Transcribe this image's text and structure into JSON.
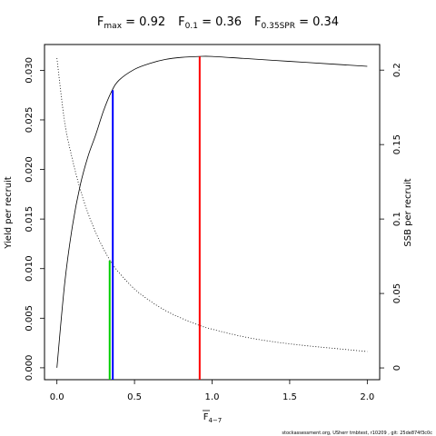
{
  "title": {
    "fmax_main": "F",
    "fmax_sub": "max",
    "fmax_value": " = 0.92",
    "f01_main": "F",
    "f01_sub": "0.1",
    "f01_value": " = 0.36",
    "fspr_main": "F",
    "fspr_sub": "0.35SPR",
    "fspr_value": " = 0.34"
  },
  "footer": "stockassessment.org,  USherr  tmbtest,  r10209 ,  git: 25de874f3c0c",
  "chart_data": {
    "type": "line",
    "title": "Fmax = 0.92   F0.1 = 0.36   F0.35SPR = 0.34",
    "xlabel_main": "F",
    "xlabel_sub": "4−7",
    "ylabel_left": "Yield per recruit",
    "ylabel_right": "SSB per recruit",
    "xlim": [
      -0.08,
      2.08
    ],
    "ylim_left": [
      -0.0012,
      0.0326
    ],
    "ylim_right": [
      -0.0079,
      0.2172
    ],
    "x_ticks": [
      0,
      0.5,
      1,
      1.5,
      2
    ],
    "x_tick_labels": [
      "0.0",
      "0.5",
      "1.0",
      "1.5",
      "2.0"
    ],
    "y_left_ticks": [
      0,
      0.005,
      0.01,
      0.015,
      0.02,
      0.025,
      0.03
    ],
    "y_left_tick_labels": [
      "0.000",
      "0.005",
      "0.010",
      "0.015",
      "0.020",
      "0.025",
      "0.030"
    ],
    "y_right_ticks": [
      0,
      0.05,
      0.1,
      0.15,
      0.2
    ],
    "y_right_tick_labels": [
      "0",
      "0.05",
      "0.1",
      "0.15",
      "0.2"
    ],
    "grid": false,
    "series": [
      {
        "axis": "left",
        "style": "solid",
        "color": "#000000",
        "x": [
          0,
          0.05,
          0.1,
          0.15,
          0.2,
          0.25,
          0.3,
          0.35,
          0.4,
          0.5,
          0.6,
          0.7,
          0.8,
          0.92,
          1.0,
          1.2,
          1.4,
          1.6,
          1.8,
          2.0
        ],
        "y": [
          0,
          0.0085,
          0.0143,
          0.0184,
          0.0213,
          0.0235,
          0.0259,
          0.0278,
          0.029,
          0.0301,
          0.0307,
          0.0311,
          0.0313,
          0.0314,
          0.0314,
          0.0312,
          0.031,
          0.0308,
          0.0306,
          0.0304
        ]
      },
      {
        "axis": "right",
        "style": "dotted",
        "color": "#000000",
        "x": [
          0,
          0.05,
          0.1,
          0.15,
          0.2,
          0.25,
          0.3,
          0.35,
          0.4,
          0.5,
          0.6,
          0.7,
          0.8,
          0.92,
          1.0,
          1.2,
          1.4,
          1.6,
          1.8,
          2.0
        ],
        "y": [
          0.208,
          0.165,
          0.14,
          0.12,
          0.104,
          0.091,
          0.08,
          0.071,
          0.064,
          0.053,
          0.045,
          0.0385,
          0.0335,
          0.0285,
          0.026,
          0.021,
          0.0175,
          0.015,
          0.013,
          0.011
        ]
      }
    ],
    "reference_lines": [
      {
        "name": "Fmax",
        "x": 0.92,
        "y": 0.0314,
        "color": "#ff0000"
      },
      {
        "name": "F0.1",
        "x": 0.36,
        "y": 0.028,
        "color": "#0000ff"
      },
      {
        "name": "F0.35SPR",
        "x": 0.34,
        "y": 0.0108,
        "color": "#00cd00"
      }
    ]
  }
}
